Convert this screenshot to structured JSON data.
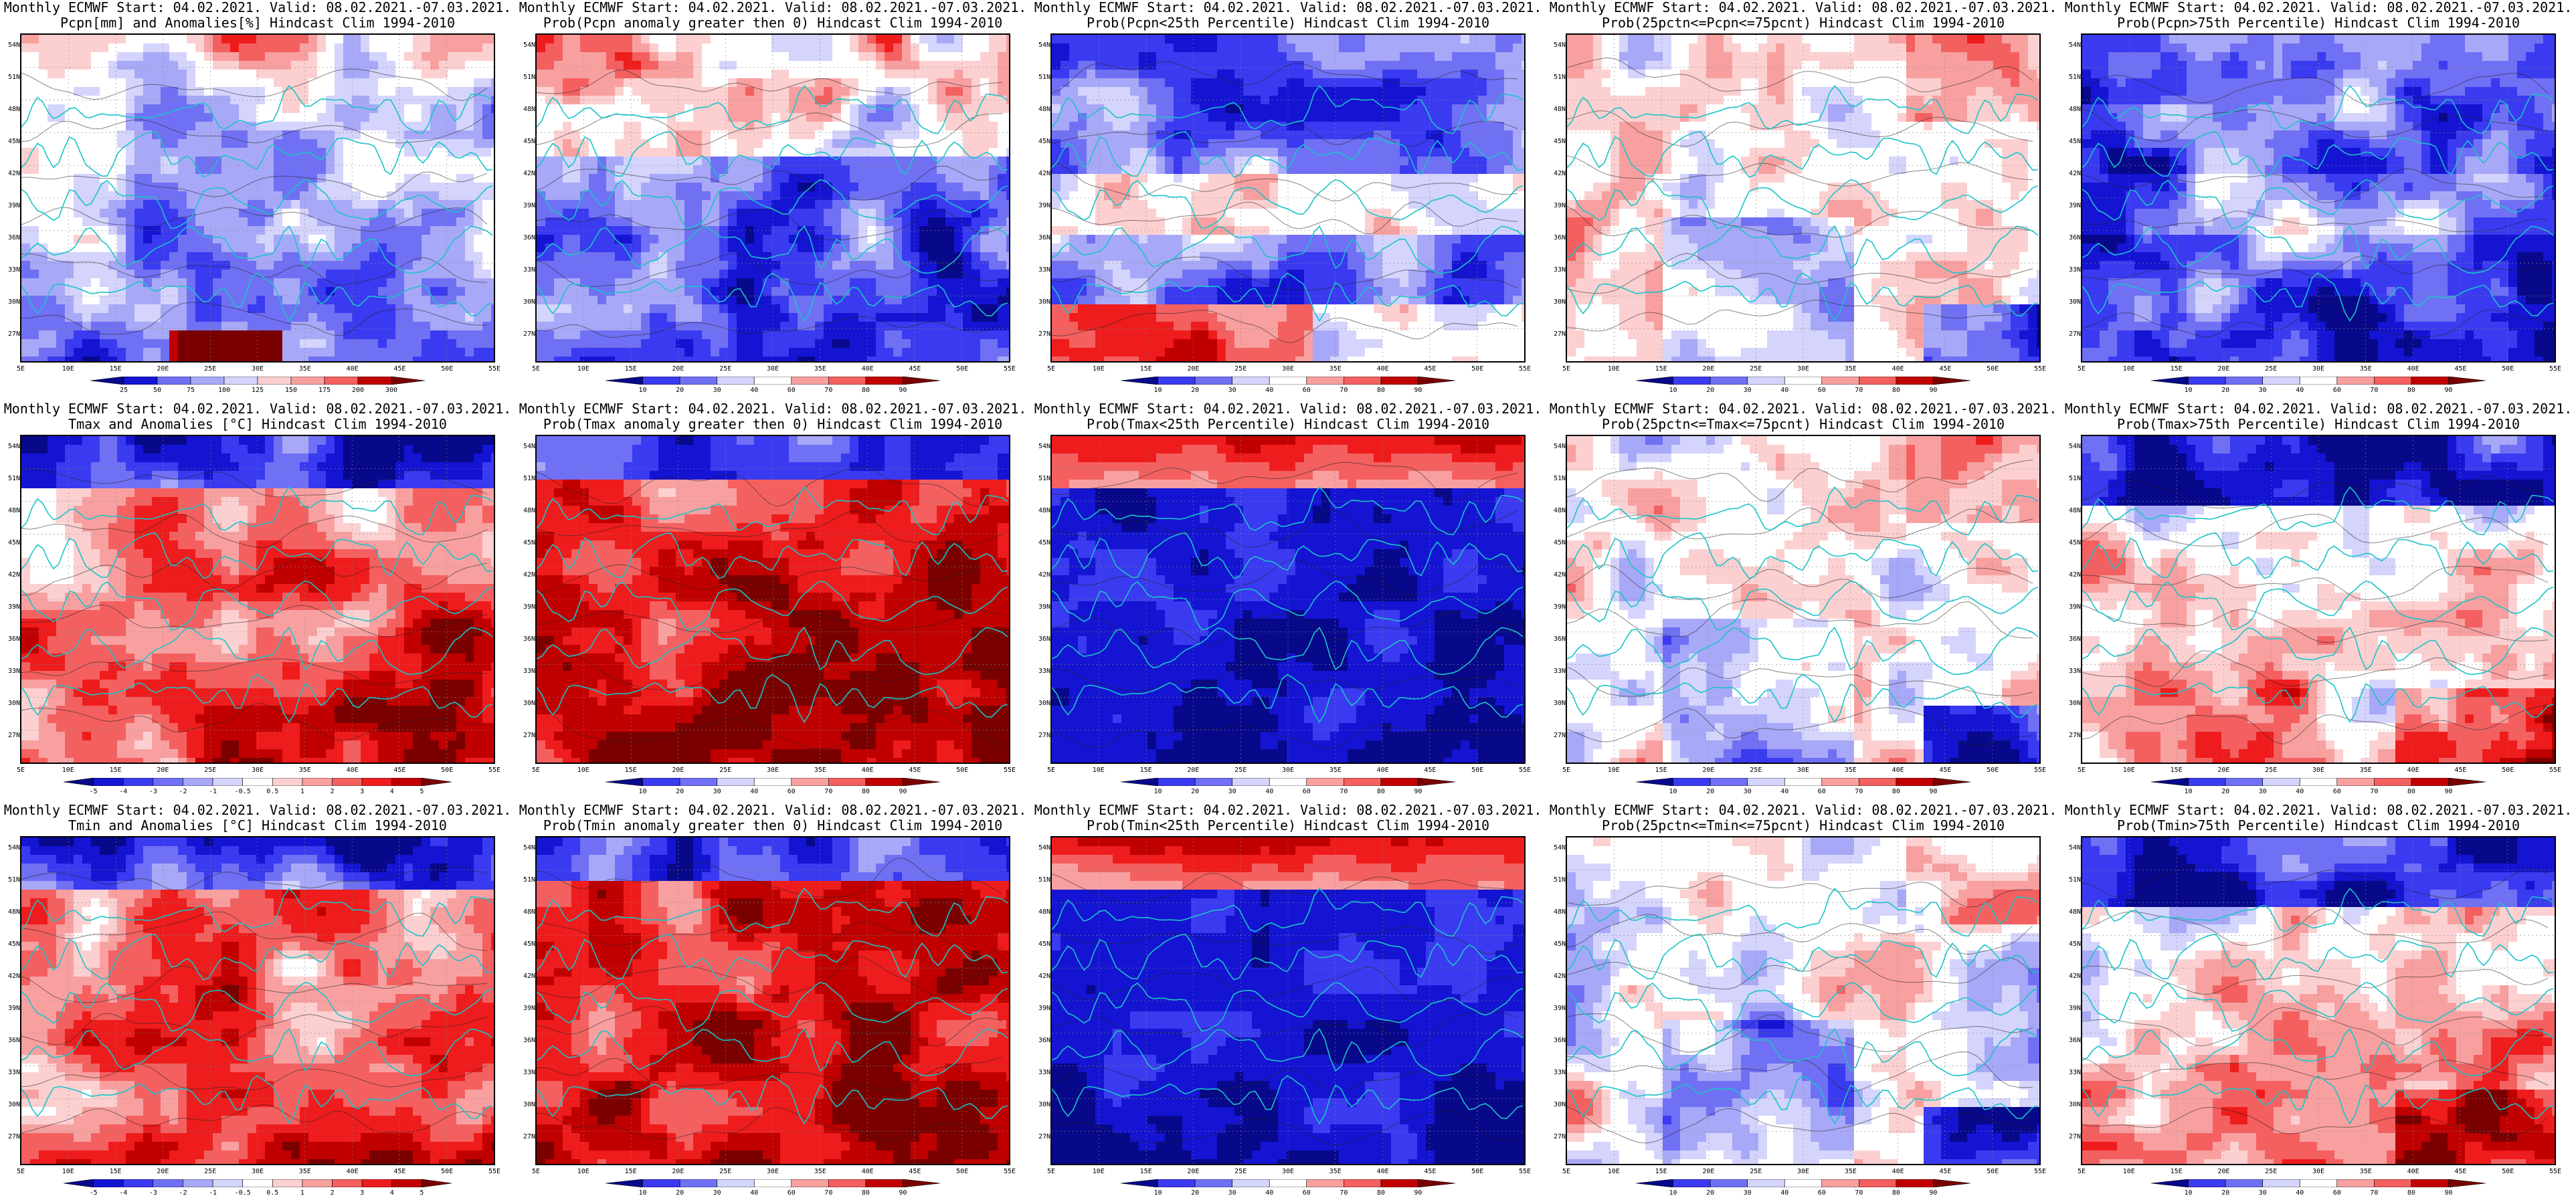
{
  "lat_ticks": [
    "54N",
    "51N",
    "48N",
    "45N",
    "42N",
    "39N",
    "36N",
    "33N",
    "30N",
    "27N"
  ],
  "lon_ticks": [
    "5E",
    "10E",
    "15E",
    "20E",
    "25E",
    "30E",
    "35E",
    "40E",
    "45E",
    "50E",
    "55E"
  ],
  "colors": {
    "coast": "#19c4c8",
    "contour": "#222222",
    "diverging": [
      "#08088a",
      "#1414d2",
      "#3a3af0",
      "#7070f4",
      "#a8a8f8",
      "#d4d4fc",
      "#ffffff",
      "#fcd0d0",
      "#f8a0a0",
      "#f46060",
      "#ee1c1c",
      "#c00000",
      "#7a0000"
    ]
  },
  "scales": {
    "precip": [
      "25",
      "50",
      "75",
      "100",
      "125",
      "150",
      "175",
      "200",
      "300"
    ],
    "prob": [
      "10",
      "20",
      "30",
      "40",
      "60",
      "70",
      "80",
      "90"
    ],
    "temp": [
      "-5",
      "-4",
      "-3",
      "-2",
      "-1",
      "-0.5",
      "0.5",
      "1",
      "2",
      "3",
      "4",
      "5"
    ]
  },
  "panels": [
    {
      "line1": "Monthly ECMWF Start: 04.02.2021. Valid: 08.02.2021.-07.03.2021.",
      "line2": "Pcpn[mm] and Anomalies[%] Hindcast Clim 1994-2010",
      "scale": "precip",
      "pattern": "precip_anom"
    },
    {
      "line1": "Monthly ECMWF Start: 04.02.2021. Valid: 08.02.2021.-07.03.2021.",
      "line2": "Prob(Pcpn anomaly greater then 0) Hindcast Clim 1994-2010",
      "scale": "prob",
      "pattern": "precip_pos"
    },
    {
      "line1": "Monthly ECMWF Start: 04.02.2021. Valid: 08.02.2021.-07.03.2021.",
      "line2": "Prob(Pcpn<25th Percentile) Hindcast Clim 1994-2010",
      "scale": "prob",
      "pattern": "precip_low"
    },
    {
      "line1": "Monthly ECMWF Start: 04.02.2021. Valid: 08.02.2021.-07.03.2021.",
      "line2": "Prob(25pctn<=Pcpn<=75pcnt) Hindcast Clim 1994-2010",
      "scale": "prob",
      "pattern": "mid"
    },
    {
      "line1": "Monthly ECMWF Start: 04.02.2021. Valid: 08.02.2021.-07.03.2021.",
      "line2": "Prob(Pcpn>75th Percentile) Hindcast Clim 1994-2010",
      "scale": "prob",
      "pattern": "precip_high"
    },
    {
      "line1": "Monthly ECMWF Start: 04.02.2021. Valid: 08.02.2021.-07.03.2021.",
      "line2": "Tmax and Anomalies [°C] Hindcast Clim 1994-2010",
      "scale": "temp",
      "pattern": "temp_anom"
    },
    {
      "line1": "Monthly ECMWF Start: 04.02.2021. Valid: 08.02.2021.-07.03.2021.",
      "line2": "Prob(Tmax anomaly greater then 0) Hindcast Clim 1994-2010",
      "scale": "prob",
      "pattern": "temp_pos"
    },
    {
      "line1": "Monthly ECMWF Start: 04.02.2021. Valid: 08.02.2021.-07.03.2021.",
      "line2": "Prob(Tmax<25th Percentile) Hindcast Clim 1994-2010",
      "scale": "prob",
      "pattern": "temp_low"
    },
    {
      "line1": "Monthly ECMWF Start: 04.02.2021. Valid: 08.02.2021.-07.03.2021.",
      "line2": "Prob(25pctn<=Tmax<=75pcnt) Hindcast Clim 1994-2010",
      "scale": "prob",
      "pattern": "mid"
    },
    {
      "line1": "Monthly ECMWF Start: 04.02.2021. Valid: 08.02.2021.-07.03.2021.",
      "line2": "Prob(Tmax>75th Percentile) Hindcast Clim 1994-2010",
      "scale": "prob",
      "pattern": "temp_high"
    },
    {
      "line1": "Monthly ECMWF Start: 04.02.2021. Valid: 08.02.2021.-07.03.2021.",
      "line2": "Tmin and Anomalies [°C] Hindcast Clim 1994-2010",
      "scale": "temp",
      "pattern": "temp_anom"
    },
    {
      "line1": "Monthly ECMWF Start: 04.02.2021. Valid: 08.02.2021.-07.03.2021.",
      "line2": "Prob(Tmin anomaly greater then 0) Hindcast Clim 1994-2010",
      "scale": "prob",
      "pattern": "temp_pos"
    },
    {
      "line1": "Monthly ECMWF Start: 04.02.2021. Valid: 08.02.2021.-07.03.2021.",
      "line2": "Prob(Tmin<25th Percentile) Hindcast Clim 1994-2010",
      "scale": "prob",
      "pattern": "temp_low"
    },
    {
      "line1": "Monthly ECMWF Start: 04.02.2021. Valid: 08.02.2021.-07.03.2021.",
      "line2": "Prob(25pctn<=Tmin<=75pcnt) Hindcast Clim 1994-2010",
      "scale": "prob",
      "pattern": "mid"
    },
    {
      "line1": "Monthly ECMWF Start: 04.02.2021. Valid: 08.02.2021.-07.03.2021.",
      "line2": "Prob(Tmin>75th Percentile) Hindcast Clim 1994-2010",
      "scale": "prob",
      "pattern": "temp_high"
    }
  ]
}
